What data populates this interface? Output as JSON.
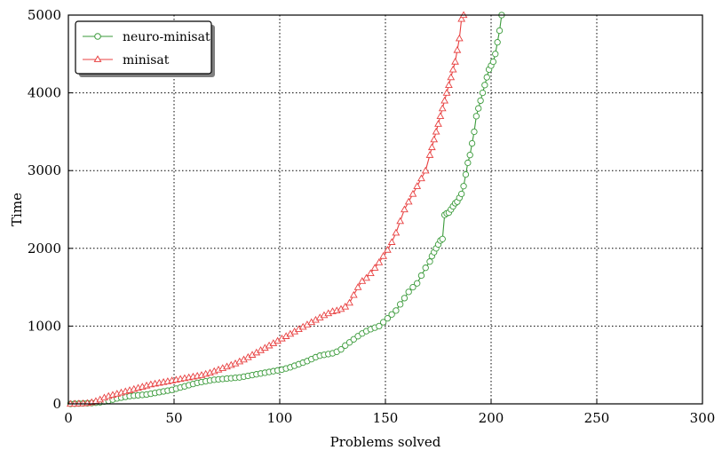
{
  "chart_data": {
    "type": "line",
    "xlabel": "Problems solved",
    "ylabel": "Time",
    "xlim": [
      0,
      300
    ],
    "ylim": [
      0,
      5000
    ],
    "xticks": [
      0,
      50,
      100,
      150,
      200,
      250,
      300
    ],
    "yticks": [
      0,
      1000,
      2000,
      3000,
      4000,
      5000
    ],
    "grid": true,
    "legend_position": "top-left",
    "series": [
      {
        "name": "neuro-minisat",
        "color": "#3a9a3a",
        "marker": "circle",
        "x": [
          1,
          3,
          5,
          7,
          9,
          11,
          13,
          15,
          17,
          19,
          21,
          23,
          25,
          27,
          29,
          31,
          33,
          35,
          37,
          39,
          41,
          43,
          45,
          47,
          49,
          51,
          53,
          55,
          57,
          59,
          61,
          63,
          65,
          67,
          69,
          71,
          73,
          75,
          77,
          79,
          81,
          83,
          85,
          87,
          89,
          91,
          93,
          95,
          97,
          99,
          101,
          103,
          105,
          107,
          109,
          111,
          113,
          115,
          117,
          119,
          121,
          123,
          125,
          127,
          129,
          131,
          133,
          135,
          137,
          139,
          141,
          143,
          145,
          147,
          149,
          151,
          153,
          155,
          157,
          159,
          161,
          163,
          165,
          167,
          169,
          171,
          172,
          173,
          174,
          175,
          176,
          177,
          178,
          179,
          180,
          181,
          182,
          183,
          184,
          185,
          186,
          187,
          188,
          189,
          190,
          191,
          192,
          193,
          194,
          195,
          196,
          197,
          198,
          199,
          200,
          201,
          202,
          203,
          204,
          205
        ],
        "y": [
          0,
          2,
          4,
          6,
          8,
          10,
          15,
          20,
          30,
          40,
          55,
          70,
          80,
          90,
          100,
          105,
          110,
          115,
          120,
          130,
          140,
          150,
          160,
          170,
          180,
          195,
          210,
          225,
          240,
          255,
          270,
          280,
          290,
          300,
          310,
          315,
          320,
          325,
          330,
          335,
          340,
          350,
          360,
          370,
          380,
          390,
          400,
          410,
          420,
          430,
          440,
          455,
          470,
          490,
          510,
          530,
          550,
          575,
          600,
          620,
          630,
          640,
          650,
          670,
          700,
          750,
          790,
          830,
          870,
          905,
          935,
          960,
          980,
          1000,
          1050,
          1100,
          1150,
          1200,
          1280,
          1360,
          1440,
          1500,
          1550,
          1650,
          1750,
          1830,
          1900,
          1950,
          2000,
          2050,
          2100,
          2120,
          2430,
          2450,
          2460,
          2500,
          2540,
          2580,
          2600,
          2650,
          2700,
          2800,
          2950,
          3100,
          3200,
          3350,
          3500,
          3700,
          3800,
          3900,
          4000,
          4100,
          4200,
          4300,
          4350,
          4400,
          4500,
          4650,
          4800,
          5000
        ]
      },
      {
        "name": "minisat",
        "color": "#e84040",
        "marker": "triangle",
        "x": [
          1,
          3,
          5,
          7,
          9,
          11,
          13,
          15,
          17,
          19,
          21,
          23,
          25,
          27,
          29,
          31,
          33,
          35,
          37,
          39,
          41,
          43,
          45,
          47,
          49,
          51,
          53,
          55,
          57,
          59,
          61,
          63,
          65,
          67,
          69,
          71,
          73,
          75,
          77,
          79,
          81,
          83,
          85,
          87,
          89,
          91,
          93,
          95,
          97,
          99,
          101,
          103,
          105,
          107,
          109,
          111,
          113,
          115,
          117,
          119,
          121,
          123,
          125,
          127,
          129,
          131,
          133,
          135,
          137,
          139,
          141,
          143,
          145,
          147,
          149,
          151,
          153,
          155,
          157,
          159,
          161,
          163,
          165,
          167,
          169,
          171,
          172,
          173,
          174,
          175,
          176,
          177,
          178,
          179,
          180,
          181,
          182,
          183,
          184,
          185,
          186,
          187
        ],
        "y": [
          0,
          2,
          4,
          6,
          10,
          20,
          35,
          55,
          80,
          100,
          115,
          130,
          145,
          160,
          175,
          190,
          205,
          220,
          235,
          250,
          260,
          270,
          280,
          290,
          300,
          310,
          320,
          330,
          340,
          350,
          360,
          370,
          385,
          400,
          420,
          440,
          460,
          480,
          500,
          520,
          545,
          570,
          600,
          630,
          660,
          690,
          720,
          750,
          780,
          810,
          840,
          870,
          900,
          930,
          960,
          990,
          1020,
          1050,
          1080,
          1110,
          1140,
          1165,
          1190,
          1200,
          1220,
          1250,
          1300,
          1400,
          1500,
          1580,
          1620,
          1680,
          1750,
          1820,
          1900,
          1980,
          2080,
          2200,
          2350,
          2500,
          2600,
          2700,
          2800,
          2900,
          3000,
          3200,
          3300,
          3400,
          3500,
          3600,
          3700,
          3800,
          3900,
          4000,
          4100,
          4200,
          4300,
          4400,
          4550,
          4700,
          4950,
          5000
        ]
      }
    ]
  }
}
